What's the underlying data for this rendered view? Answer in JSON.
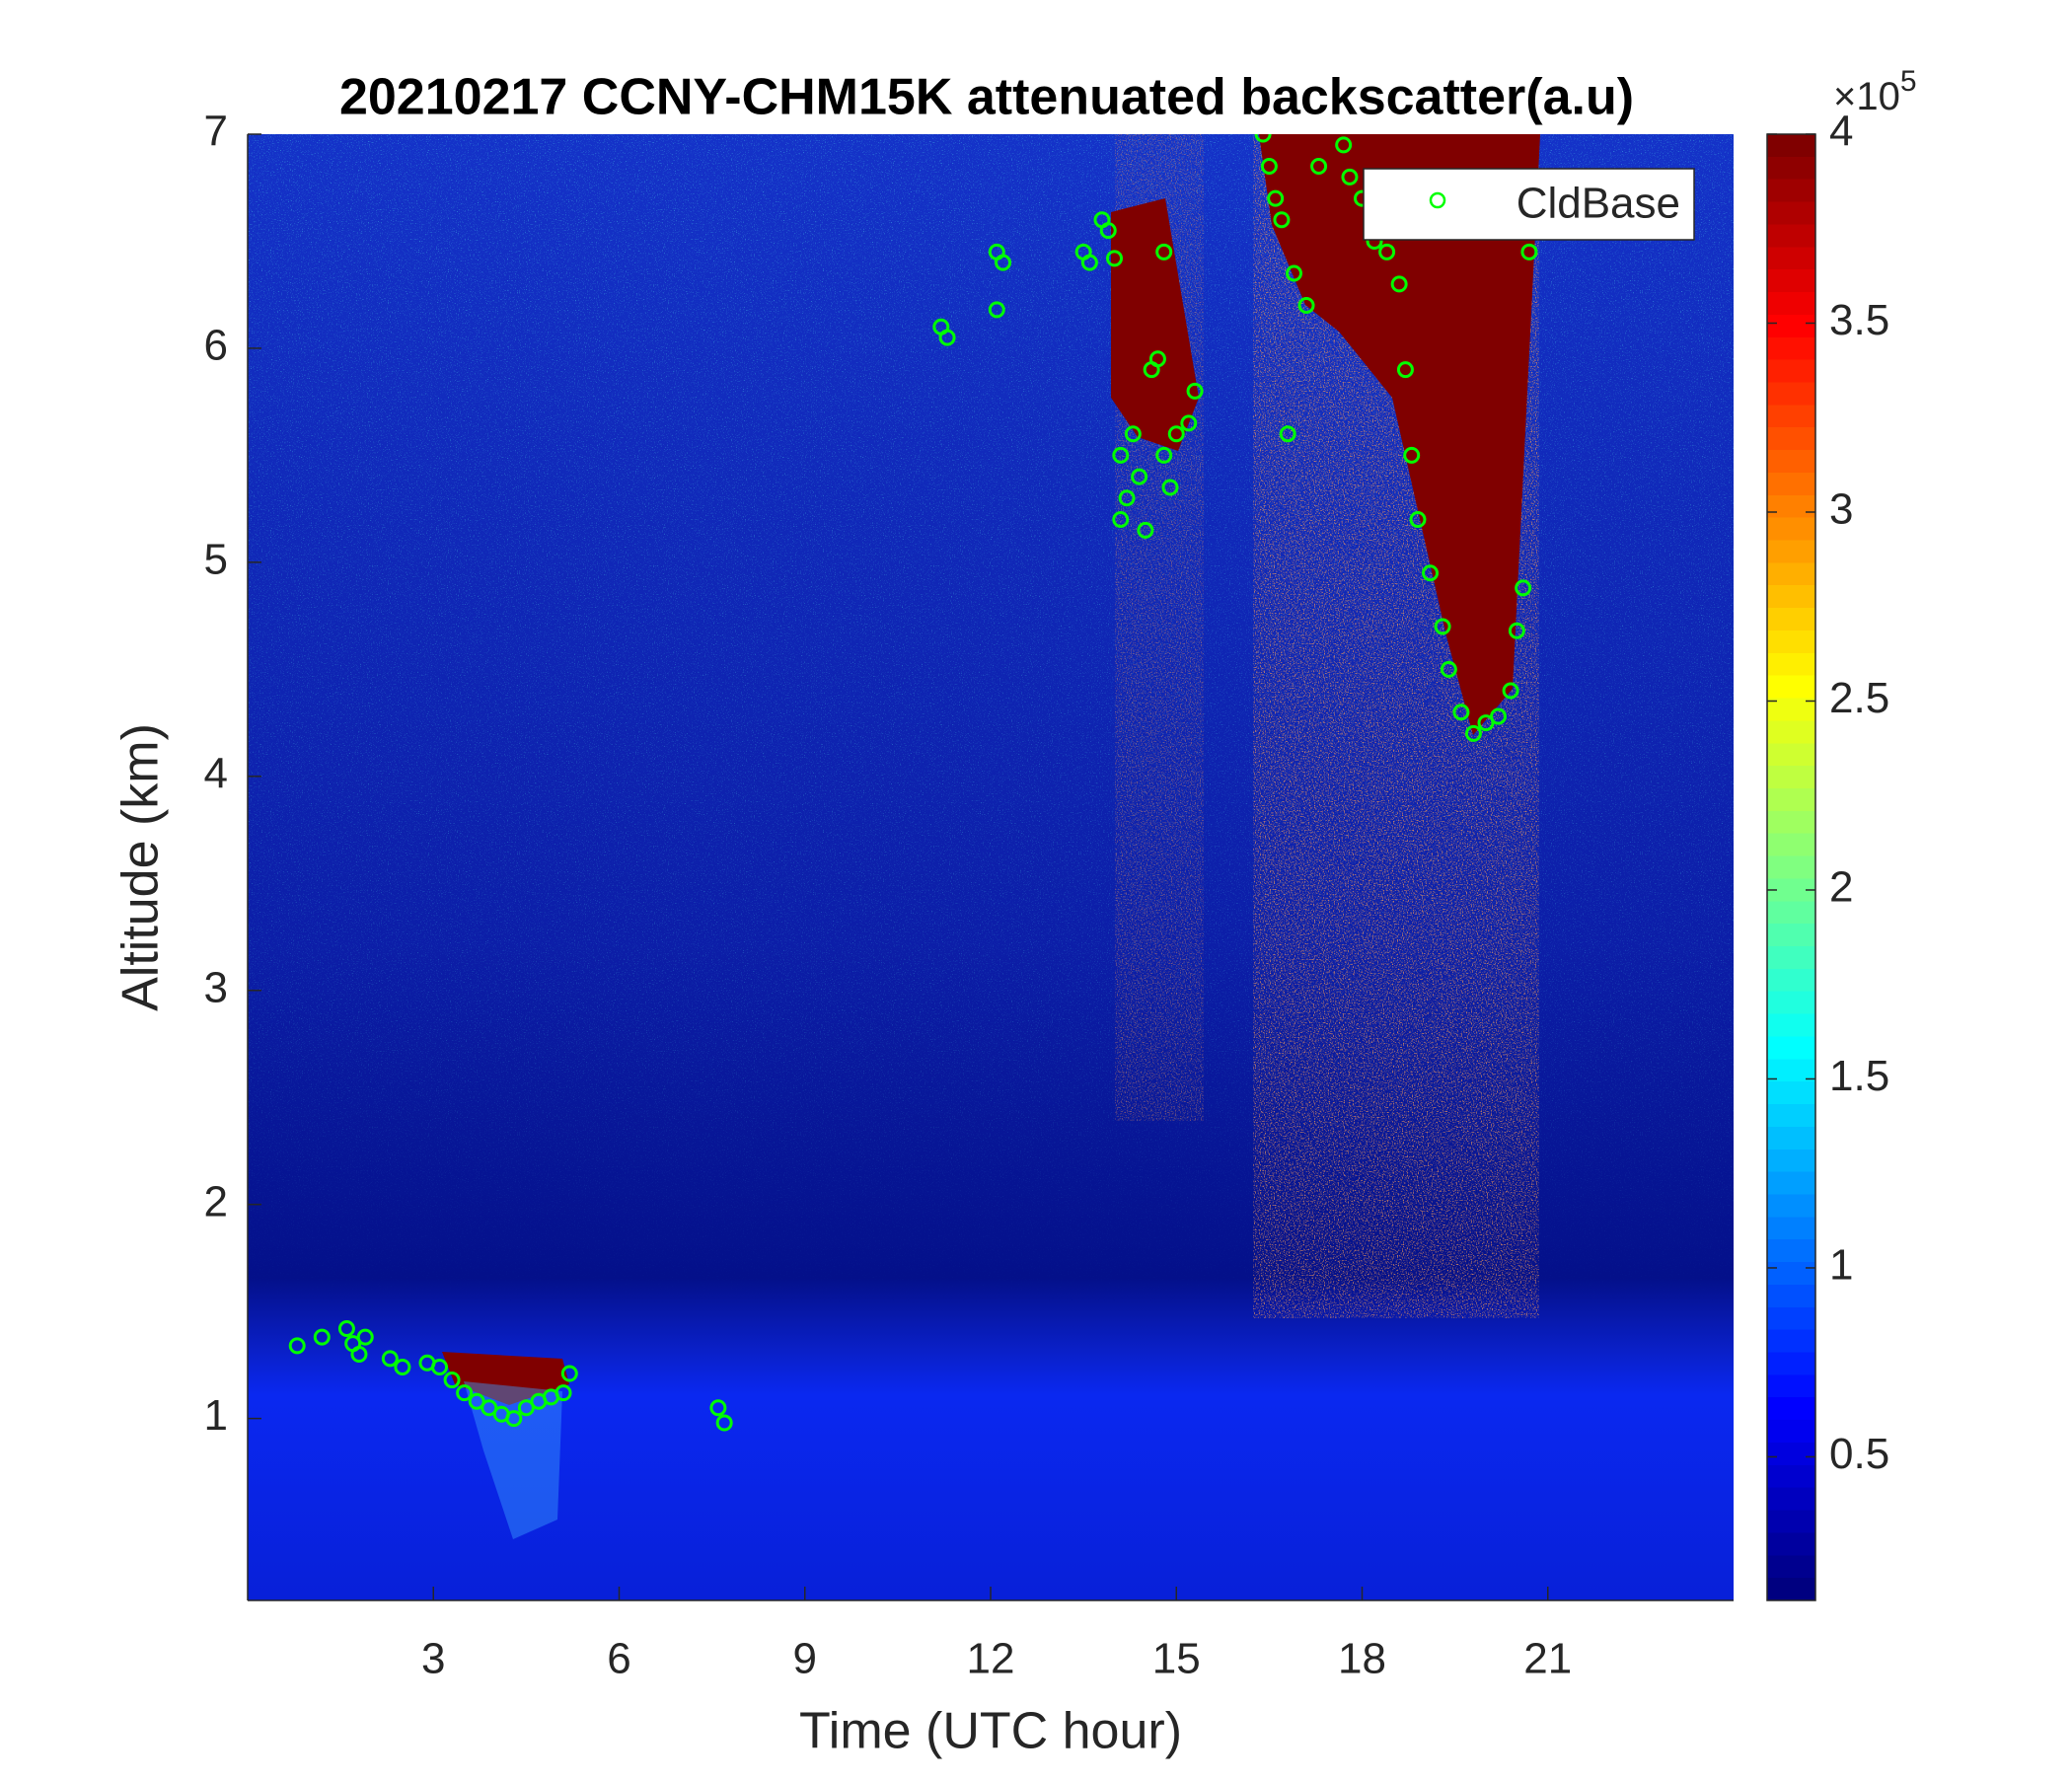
{
  "chart_data": {
    "type": "scatter",
    "title": "20210217 CCNY-CHM15K attenuated backscatter(a.u)",
    "x_label": "Time (UTC hour)",
    "y_label": "Altitude (km)",
    "xlim": [
      0,
      24
    ],
    "ylim": [
      0.15,
      7
    ],
    "xticks": [
      3,
      6,
      9,
      12,
      15,
      18,
      21
    ],
    "yticks": [
      1,
      2,
      3,
      4,
      5,
      6,
      7
    ],
    "legend": "northeast",
    "series": [
      {
        "name": "CldBase",
        "color": "#00ff00",
        "x": [
          0.8,
          1.2,
          1.6,
          1.7,
          1.8,
          1.9,
          2.3,
          2.5,
          2.9,
          3.1,
          3.3,
          3.5,
          3.7,
          3.9,
          4.1,
          4.3,
          4.5,
          4.7,
          4.9,
          5.1,
          5.2,
          7.6,
          7.7,
          11.2,
          11.3,
          12.1,
          12.2,
          12.1,
          13.5,
          13.6,
          13.8,
          13.9,
          14.0,
          14.1,
          14.1,
          14.2,
          14.3,
          14.4,
          14.5,
          14.6,
          14.7,
          14.8,
          14.9,
          15.0,
          15.2,
          15.3,
          14.8,
          16.4,
          16.5,
          16.6,
          16.7,
          16.8,
          16.9,
          17.1,
          17.3,
          17.7,
          17.8,
          18.0,
          18.2,
          18.4,
          18.6,
          18.7,
          18.8,
          18.9,
          19.1,
          19.3,
          19.4,
          19.6,
          19.8,
          20.0,
          20.2,
          20.4,
          20.5,
          20.6,
          20.7
        ],
        "values": [
          1.34,
          1.38,
          1.42,
          1.35,
          1.3,
          1.38,
          1.28,
          1.24,
          1.26,
          1.24,
          1.18,
          1.12,
          1.08,
          1.05,
          1.02,
          1.0,
          1.05,
          1.08,
          1.1,
          1.12,
          1.21,
          1.05,
          0.98,
          6.1,
          6.05,
          6.45,
          6.4,
          6.18,
          6.45,
          6.4,
          6.6,
          6.55,
          6.42,
          5.5,
          5.2,
          5.3,
          5.6,
          5.4,
          5.15,
          5.9,
          5.95,
          5.5,
          5.35,
          5.6,
          5.65,
          5.8,
          6.45,
          7.0,
          6.85,
          6.7,
          6.6,
          5.6,
          6.35,
          6.2,
          6.85,
          6.95,
          6.8,
          6.7,
          6.5,
          6.45,
          6.3,
          5.9,
          5.5,
          5.2,
          4.95,
          4.7,
          4.5,
          4.3,
          4.2,
          4.25,
          4.28,
          4.4,
          4.68,
          4.88,
          6.45
        ]
      }
    ],
    "colorbar": {
      "colormap": "jet",
      "clim": [
        0.12,
        4
      ],
      "ticks": [
        0.5,
        1,
        1.5,
        2,
        2.5,
        3,
        3.5,
        4
      ],
      "multiplier": "×10",
      "exponent": "5"
    }
  }
}
